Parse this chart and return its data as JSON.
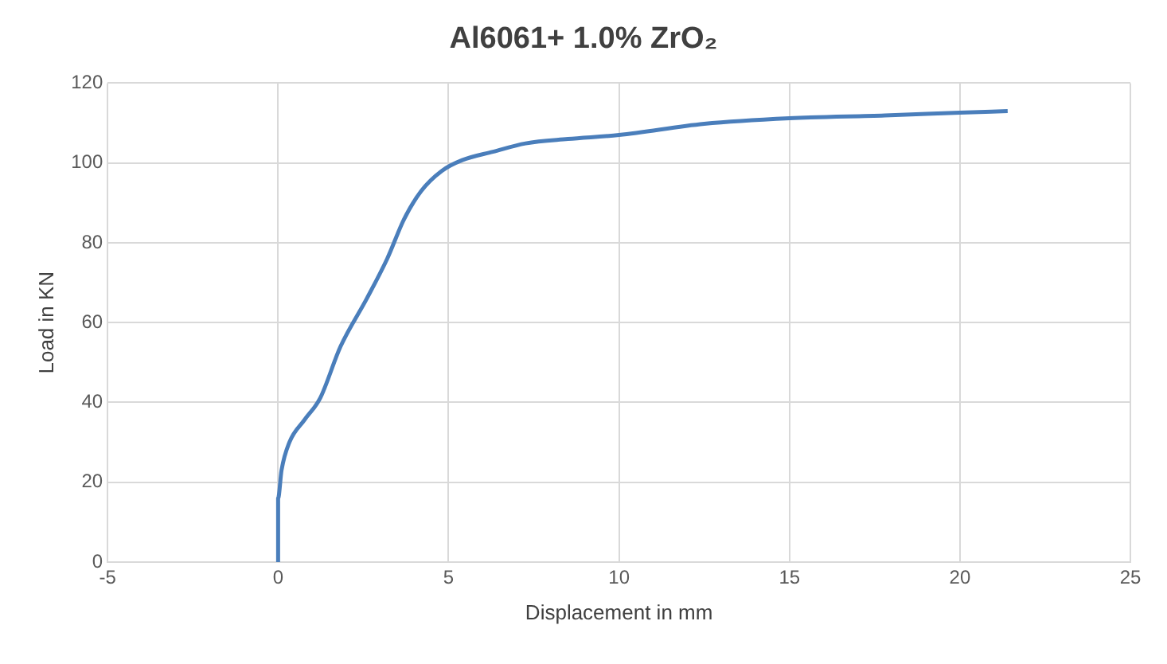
{
  "chart_data": {
    "type": "line",
    "title": "Al6061+ 1.0% ZrO₂",
    "xlabel": "Displacement in mm",
    "ylabel": "Load in KN",
    "series": [
      {
        "color": "#4a7ebb",
        "x": [
          0,
          0,
          0.1,
          0.33,
          0.78,
          1.23,
          1.83,
          2.6,
          3.2,
          3.7,
          4.2,
          4.8,
          5.4,
          6.3,
          7.26,
          8.5,
          10,
          12.5,
          15,
          17.8,
          20,
          21.4
        ],
        "values": [
          0,
          16,
          23,
          30,
          35.7,
          41,
          54,
          66,
          76,
          86,
          93,
          98,
          100.7,
          102.8,
          104.9,
          106,
          107,
          109.8,
          111.2,
          111.9,
          112.6,
          113
        ]
      }
    ],
    "xlim": [
      -5,
      25
    ],
    "xticks": [
      -5,
      0,
      5,
      10,
      15,
      20,
      25
    ],
    "ylim": [
      0,
      120
    ],
    "yticks": [
      0,
      20,
      40,
      60,
      80,
      100,
      120
    ],
    "grid": true,
    "legend": false,
    "marker": "none",
    "line_style": "solid"
  }
}
